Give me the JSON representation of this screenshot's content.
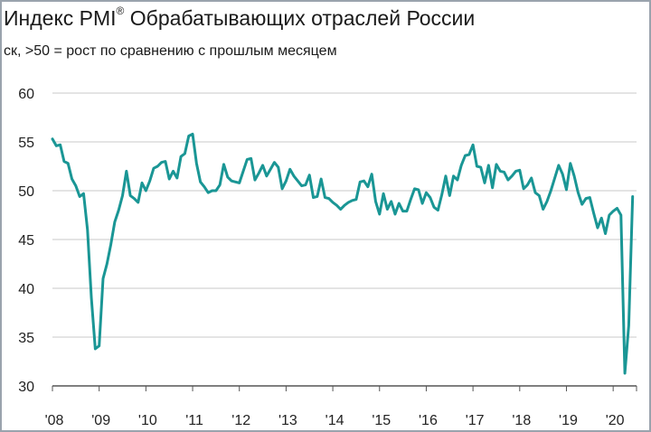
{
  "header": {
    "title_main": "Индекс PMI",
    "title_sup": "®",
    "title_rest": " Обрабатывающих отраслей России",
    "subtitle": "ск, >50 = рост по сравнению с прошлым месяцем"
  },
  "colors": {
    "line": "#1a9695",
    "grid": "#c9c9c9",
    "axis": "#555555",
    "border": "#9aa3ad"
  },
  "chart_data": {
    "type": "line",
    "title": "Индекс PMI® Обрабатывающих отраслей России",
    "subtitle": "ск, >50 = рост по сравнению с прошлым месяцем",
    "xlabel": "",
    "ylabel": "",
    "ylim": [
      30,
      60
    ],
    "xlim": [
      "2008-01",
      "2020-06"
    ],
    "yticks": [
      30,
      35,
      40,
      45,
      50,
      55,
      60
    ],
    "xticks": [
      "'08",
      "'09",
      "'10",
      "'11",
      "'12",
      "'13",
      "'14",
      "'15",
      "'16",
      "'17",
      "'18",
      "'19",
      "'20"
    ],
    "grid": true,
    "legend": "none",
    "series": [
      {
        "name": "",
        "start": "2008-01",
        "frequency": "monthly",
        "values": [
          55.3,
          54.6,
          54.7,
          53.0,
          52.8,
          51.2,
          50.5,
          49.4,
          49.7,
          46.0,
          39.0,
          33.8,
          34.1,
          41.0,
          42.5,
          44.5,
          46.8,
          48.0,
          49.5,
          52.0,
          49.5,
          49.2,
          48.8,
          50.8,
          50.0,
          51.0,
          52.3,
          52.5,
          52.9,
          53.0,
          51.2,
          52.0,
          51.3,
          53.5,
          53.8,
          55.6,
          55.8,
          52.8,
          50.9,
          50.4,
          49.8,
          50.0,
          50.0,
          50.6,
          52.7,
          51.4,
          51.0,
          50.9,
          50.8,
          52.0,
          53.2,
          53.3,
          51.1,
          51.8,
          52.6,
          51.5,
          52.2,
          52.9,
          52.4,
          50.2,
          51.0,
          52.2,
          51.5,
          51.0,
          50.5,
          50.6,
          51.6,
          49.3,
          49.4,
          51.2,
          49.3,
          49.2,
          48.8,
          48.5,
          48.1,
          48.5,
          48.8,
          49.0,
          49.1,
          50.9,
          51.0,
          50.4,
          51.7,
          48.9,
          47.6,
          49.7,
          48.1,
          48.9,
          47.6,
          48.7,
          47.9,
          47.9,
          49.1,
          50.2,
          50.1,
          48.7,
          49.8,
          49.3,
          48.3,
          48.0,
          49.6,
          51.5,
          49.5,
          51.5,
          51.1,
          52.6,
          53.6,
          53.7,
          54.7,
          52.5,
          52.4,
          50.8,
          52.6,
          50.3,
          52.7,
          52.0,
          51.9,
          51.1,
          51.5,
          52.0,
          52.1,
          50.2,
          50.6,
          51.3,
          49.8,
          49.5,
          48.1,
          48.9,
          50.0,
          51.3,
          52.6,
          51.7,
          50.1,
          52.8,
          51.5,
          49.8,
          48.6,
          49.2,
          49.3,
          47.7,
          46.2,
          47.2,
          45.6,
          47.5,
          47.9,
          48.2,
          47.5,
          31.3,
          36.2,
          49.4
        ]
      }
    ]
  }
}
